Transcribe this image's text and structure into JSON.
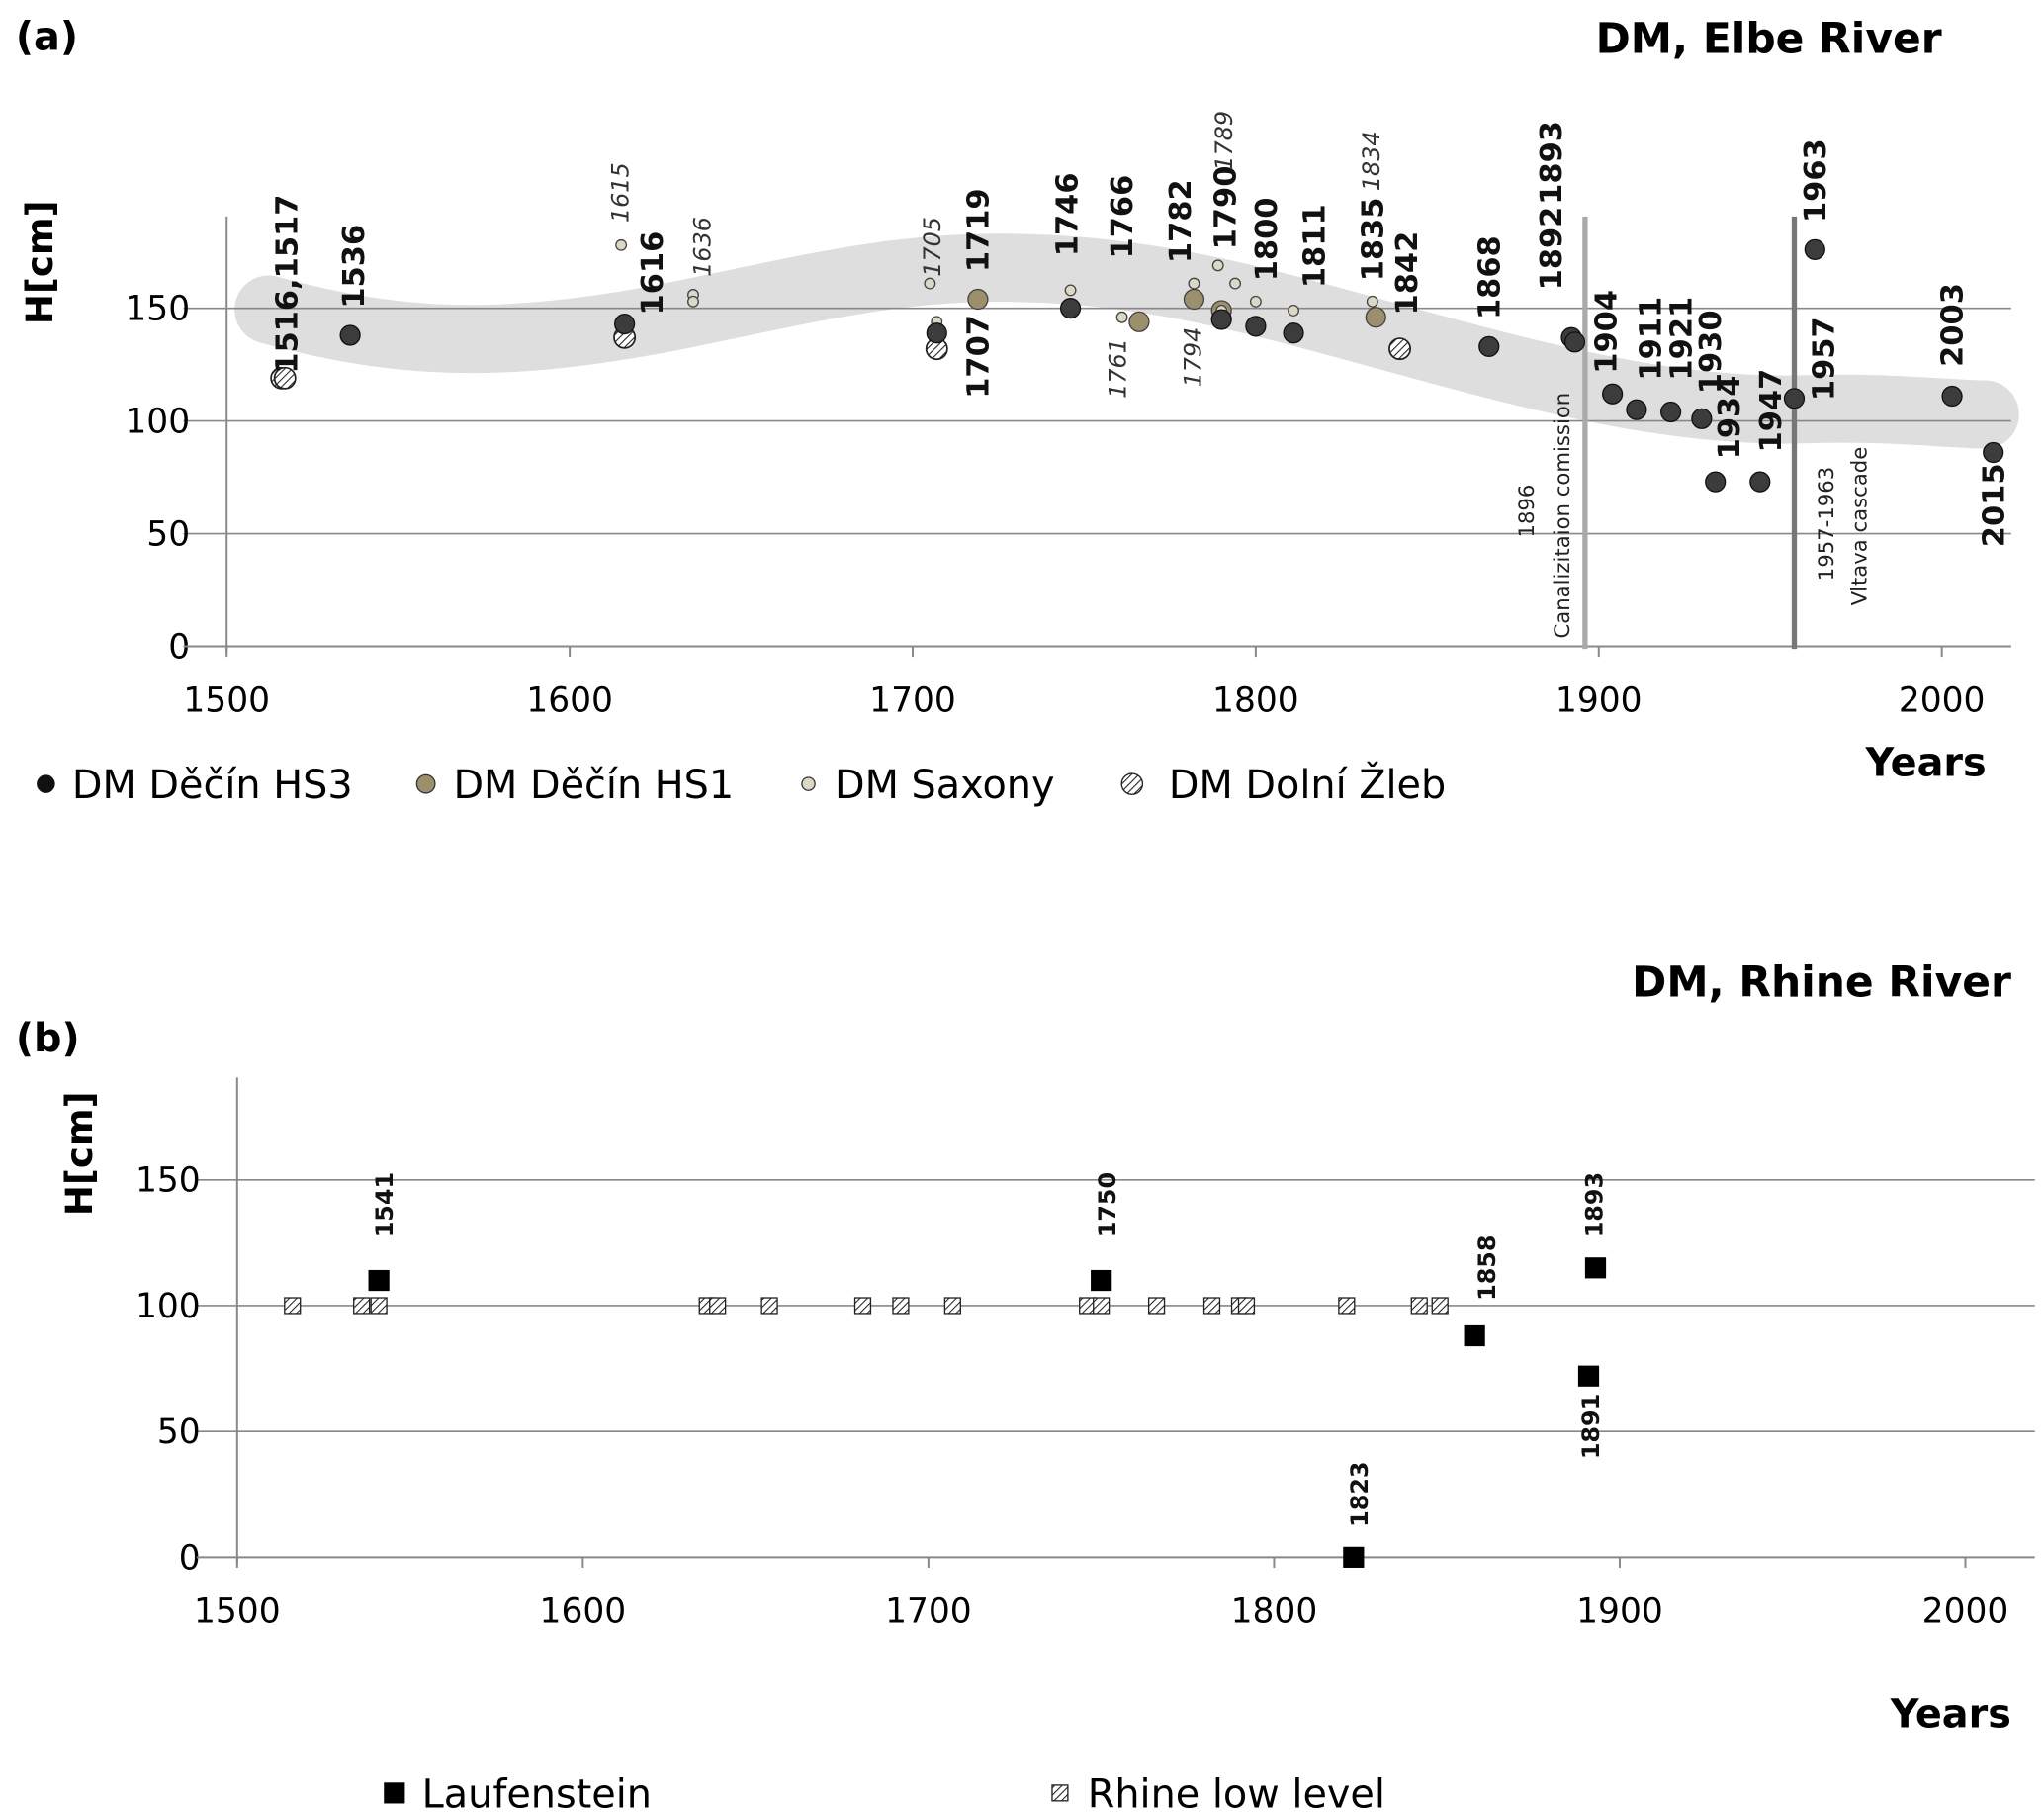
{
  "chart_data": [
    {
      "type": "scatter",
      "panel_label": "(a)",
      "title": "DM, Elbe River",
      "xlabel": "Years",
      "ylabel": "H[cm]",
      "xlim": [
        1500,
        2020
      ],
      "ylim": [
        0,
        190
      ],
      "xticks": [
        "1500",
        "1600",
        "1700",
        "1800",
        "1900",
        "2000"
      ],
      "yticks": [
        "0",
        "50",
        "100",
        "150"
      ],
      "grid": "horizontal",
      "legend_position": "bottom",
      "series": [
        {
          "name": "DM Děčín HS3",
          "marker": "filled-dark",
          "color": "#3c3c3c",
          "points": [
            [
              1536,
              138
            ],
            [
              1616,
              143
            ],
            [
              1707,
              139
            ],
            [
              1746,
              150
            ],
            [
              1790,
              145
            ],
            [
              1800,
              142
            ],
            [
              1811,
              139
            ],
            [
              1868,
              133
            ],
            [
              1892,
              137
            ],
            [
              1893,
              135
            ],
            [
              1904,
              112
            ],
            [
              1911,
              105
            ],
            [
              1921,
              104
            ],
            [
              1930,
              101
            ],
            [
              1934,
              73
            ],
            [
              1947,
              73
            ],
            [
              1957,
              110
            ],
            [
              1963,
              176
            ],
            [
              2003,
              111
            ],
            [
              2015,
              86
            ]
          ]
        },
        {
          "name": "DM Děčín HS1",
          "marker": "filled-tan",
          "color": "#9c8f6c",
          "points": [
            [
              1719,
              154
            ],
            [
              1766,
              144
            ],
            [
              1782,
              154
            ],
            [
              1790,
              149
            ],
            [
              1835,
              146
            ]
          ]
        },
        {
          "name": "DM Saxony",
          "marker": "small-light",
          "color": "#dcd8c8",
          "points": [
            [
              1615,
              178
            ],
            [
              1636,
              156
            ],
            [
              1636,
              153
            ],
            [
              1705,
              161
            ],
            [
              1707,
              144
            ],
            [
              1746,
              158
            ],
            [
              1761,
              146
            ],
            [
              1782,
              161
            ],
            [
              1789,
              169
            ],
            [
              1790,
              149
            ],
            [
              1794,
              161
            ],
            [
              1800,
              153
            ],
            [
              1811,
              149
            ],
            [
              1834,
              153
            ]
          ]
        },
        {
          "name": "DM Dolní Žleb",
          "marker": "hatched",
          "color": "#ffffff",
          "points": [
            [
              1516,
              119
            ],
            [
              1517,
              119
            ],
            [
              1616,
              137
            ],
            [
              1707,
              132
            ],
            [
              1842,
              132
            ]
          ]
        }
      ],
      "labels": [
        {
          "text": "1516,1517",
          "x": 1517.5,
          "y": 121,
          "style": "bold"
        },
        {
          "text": "1536",
          "x": 1537,
          "y": 150,
          "style": "bold"
        },
        {
          "text": "1615",
          "x": 1614,
          "y": 188,
          "style": "italic"
        },
        {
          "text": "1616",
          "x": 1624,
          "y": 147,
          "style": "bold"
        },
        {
          "text": "1636",
          "x": 1638,
          "y": 164,
          "style": "italic"
        },
        {
          "text": "1705",
          "x": 1705,
          "y": 164,
          "style": "italic"
        },
        {
          "text": "1707",
          "x": 1719,
          "y": 110,
          "style": "bold"
        },
        {
          "text": "1719",
          "x": 1719,
          "y": 166,
          "style": "bold"
        },
        {
          "text": "1746",
          "x": 1745,
          "y": 173,
          "style": "bold"
        },
        {
          "text": "1761",
          "x": 1759,
          "y": 110,
          "style": "italic"
        },
        {
          "text": "1766",
          "x": 1761,
          "y": 172,
          "style": "bold"
        },
        {
          "text": "1782",
          "x": 1778,
          "y": 170,
          "style": "bold"
        },
        {
          "text": "1794",
          "x": 1781,
          "y": 115,
          "style": "italic"
        },
        {
          "text": "1790",
          "x": 1791,
          "y": 176,
          "style": "bold"
        },
        {
          "text": "1789",
          "x": 1790,
          "y": 211,
          "style": "italic"
        },
        {
          "text": "1800",
          "x": 1803,
          "y": 162,
          "style": "bold"
        },
        {
          "text": "1811",
          "x": 1817,
          "y": 159,
          "style": "bold"
        },
        {
          "text": "1834",
          "x": 1833,
          "y": 202,
          "style": "italic"
        },
        {
          "text": "1835",
          "x": 1834,
          "y": 162,
          "style": "bold"
        },
        {
          "text": "1842",
          "x": 1844,
          "y": 147,
          "style": "bold"
        },
        {
          "text": "1868",
          "x": 1868,
          "y": 145,
          "style": "bold"
        },
        {
          "text": "1892",
          "x": 1886,
          "y": 158,
          "style": "bold"
        },
        {
          "text": "1893",
          "x": 1886,
          "y": 196,
          "style": "bold"
        },
        {
          "text": "1904",
          "x": 1902,
          "y": 121,
          "style": "bold"
        },
        {
          "text": "1911",
          "x": 1915,
          "y": 118,
          "style": "bold"
        },
        {
          "text": "1921",
          "x": 1924,
          "y": 118,
          "style": "bold"
        },
        {
          "text": "1930",
          "x": 1932.5,
          "y": 112,
          "style": "bold"
        },
        {
          "text": "1934",
          "x": 1938,
          "y": 83,
          "style": "bold"
        },
        {
          "text": "1947",
          "x": 1950,
          "y": 86,
          "style": "bold"
        },
        {
          "text": "1957",
          "x": 1965.5,
          "y": 109,
          "style": "bold"
        },
        {
          "text": "1963",
          "x": 1963,
          "y": 188,
          "style": "bold"
        },
        {
          "text": "2003",
          "x": 2003,
          "y": 124,
          "style": "bold"
        },
        {
          "text": "2015",
          "x": 2015,
          "y": 44,
          "style": "bold"
        }
      ],
      "events": [
        {
          "year": 1896,
          "year_text": "1896",
          "text": "Canalizitaion comission"
        },
        {
          "year": 1957,
          "year_text": "1957-1963",
          "text": "Vltava cascade"
        }
      ]
    },
    {
      "type": "scatter",
      "panel_label": "(b)",
      "title": "DM, Rhine River",
      "xlabel": "Years",
      "ylabel": "H[cm]",
      "xlim": [
        1500,
        2020
      ],
      "ylim": [
        0,
        190
      ],
      "xticks": [
        "1500",
        "1600",
        "1700",
        "1800",
        "1900",
        "2000"
      ],
      "yticks": [
        "0",
        "50",
        "100",
        "150"
      ],
      "grid": "horizontal",
      "legend_position": "bottom",
      "series": [
        {
          "name": "Laufenstein",
          "marker": "black-square",
          "color": "#000000",
          "points": [
            [
              1541,
              110
            ],
            [
              1750,
              110
            ],
            [
              1823,
              0
            ],
            [
              1858,
              88
            ],
            [
              1891,
              72
            ],
            [
              1893,
              115
            ]
          ]
        },
        {
          "name": "Rhine low level",
          "marker": "hatched-square",
          "color": "#ffffff",
          "points": [
            [
              1516,
              100
            ],
            [
              1536,
              100
            ],
            [
              1541,
              100
            ],
            [
              1636,
              100
            ],
            [
              1639,
              100
            ],
            [
              1654,
              100
            ],
            [
              1681,
              100
            ],
            [
              1692,
              100
            ],
            [
              1707,
              100
            ],
            [
              1746,
              100
            ],
            [
              1750,
              100
            ],
            [
              1766,
              100
            ],
            [
              1782,
              100
            ],
            [
              1790,
              100
            ],
            [
              1792,
              100
            ],
            [
              1821,
              100
            ],
            [
              1842,
              100
            ],
            [
              1848,
              100
            ]
          ]
        }
      ],
      "labels": [
        {
          "text": "1541",
          "x": 1542,
          "y": 127,
          "style": "bold"
        },
        {
          "text": "1750",
          "x": 1751,
          "y": 127,
          "style": "bold"
        },
        {
          "text": "1823",
          "x": 1824,
          "y": 12,
          "style": "bold"
        },
        {
          "text": "1858",
          "x": 1861,
          "y": 102,
          "style": "bold"
        },
        {
          "text": "1891",
          "x": 1891,
          "y": 39,
          "style": "bold"
        },
        {
          "text": "1893",
          "x": 1892,
          "y": 127,
          "style": "bold"
        }
      ]
    }
  ]
}
